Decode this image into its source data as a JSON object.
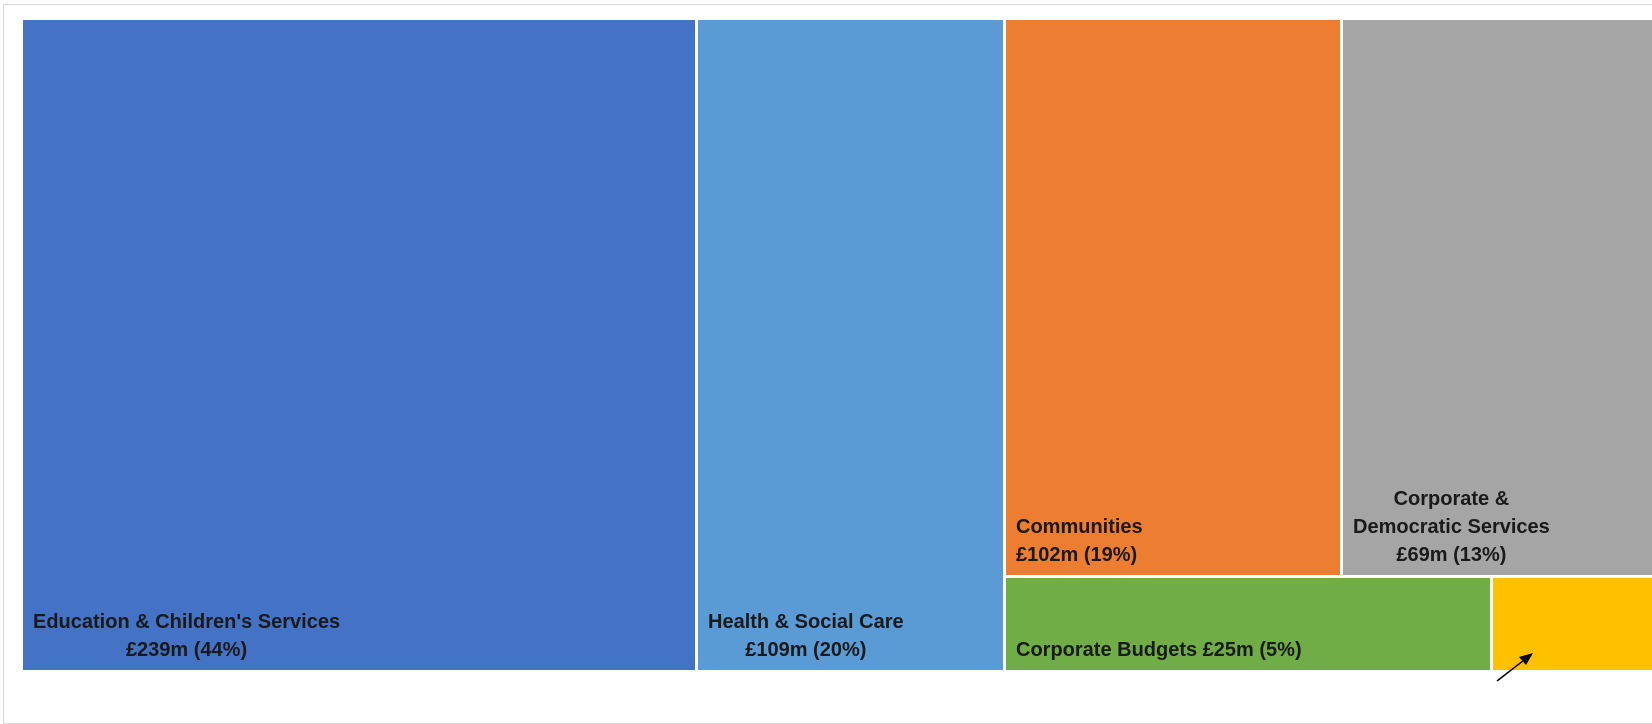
{
  "chart_data": {
    "type": "treemap",
    "items": [
      {
        "name": "Education & Children's Services",
        "value": 239,
        "value_label": "£239m (44%)",
        "percent": 44,
        "color": "#4472c4"
      },
      {
        "name": "Health & Social Care",
        "value": 109,
        "value_label": "£109m (20%)",
        "percent": 20,
        "color": "#5b9bd5"
      },
      {
        "name": "Communities",
        "value": 102,
        "value_label": "£102m (19%)",
        "percent": 19,
        "color": "#ed7d31"
      },
      {
        "name": "Corporate & Democratic Services",
        "name_lines": [
          "Corporate &",
          "Democratic Services"
        ],
        "value": 69,
        "value_label": "£69m (13%)",
        "percent": 13,
        "color": "#a5a5a5"
      },
      {
        "name": "Corporate Budgets",
        "value": 25,
        "value_label": "£25m (5%)",
        "percent": 5,
        "label": "Corporate Budgets £25m (5%)",
        "color": "#70ad47"
      },
      {
        "name": "",
        "color": "#ffc000"
      }
    ]
  }
}
